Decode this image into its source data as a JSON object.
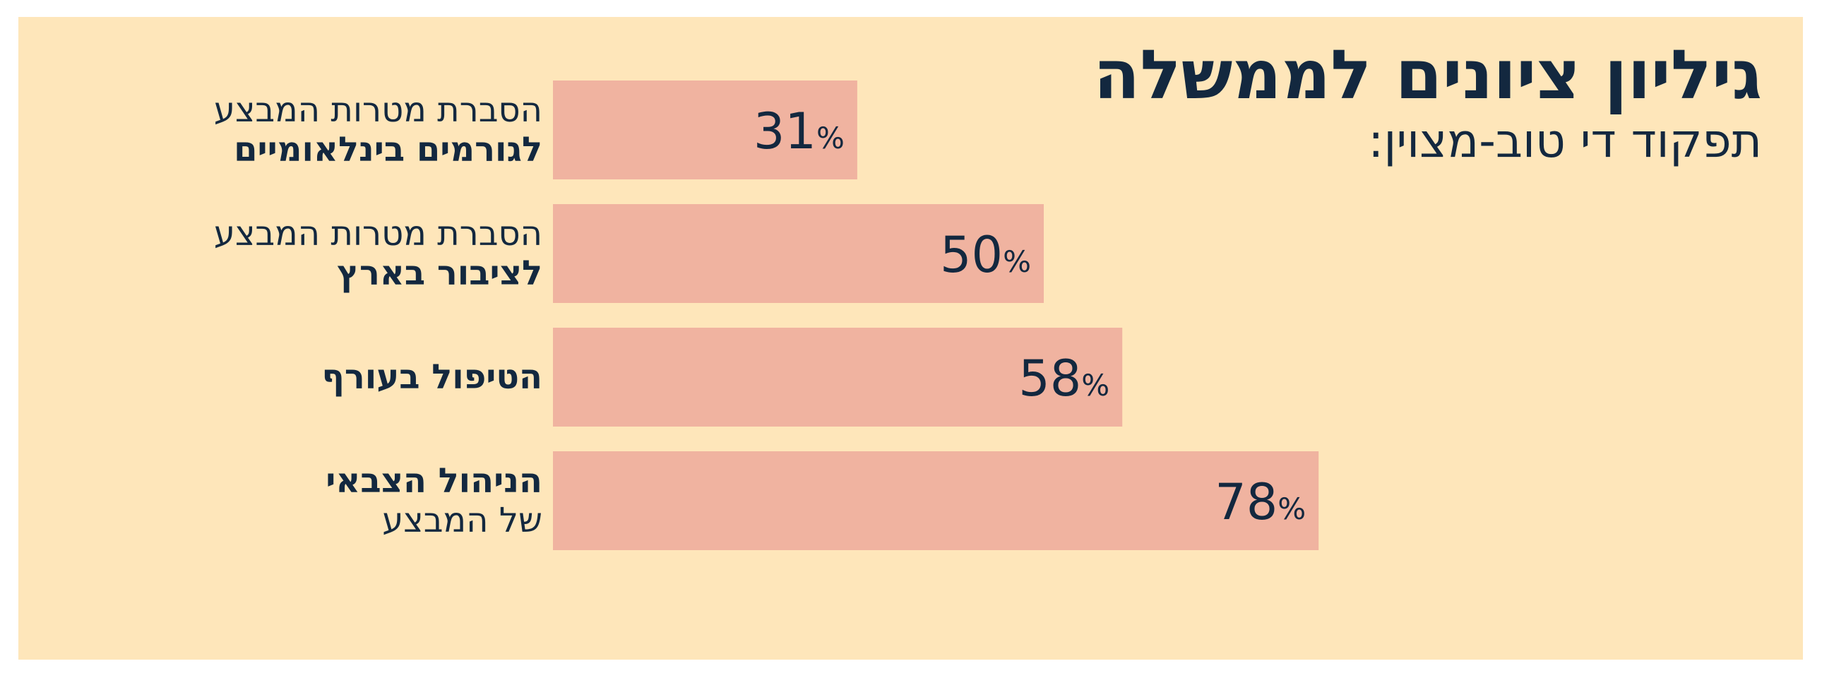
{
  "chart_data": {
    "type": "bar",
    "orientation": "horizontal",
    "title": "גיליון ציונים לממשלה",
    "subtitle": "תפקוד די טוב-מצוין:",
    "categories": [
      {
        "line1": "הסברת מטרות המבצע",
        "line1_weight": "normal",
        "line2": "לגורמים בינלאומיים",
        "line2_weight": "bold"
      },
      {
        "line1": "הסברת מטרות המבצע",
        "line1_weight": "normal",
        "line2": "לציבור בארץ",
        "line2_weight": "bold"
      },
      {
        "line1": "הטיפול בעורף",
        "line1_weight": "bold",
        "line2": "",
        "line2_weight": "normal"
      },
      {
        "line1": "הניהול הצבאי",
        "line1_weight": "bold",
        "line2": "של המבצע",
        "line2_weight": "normal"
      }
    ],
    "values": [
      31,
      50,
      58,
      78
    ],
    "value_suffix": "%",
    "xlim": [
      0,
      100
    ],
    "grid": false,
    "legend": "none",
    "bar_color": "#f0b3a0",
    "text_color": "#13283f",
    "background_color": "#fee6ba"
  }
}
